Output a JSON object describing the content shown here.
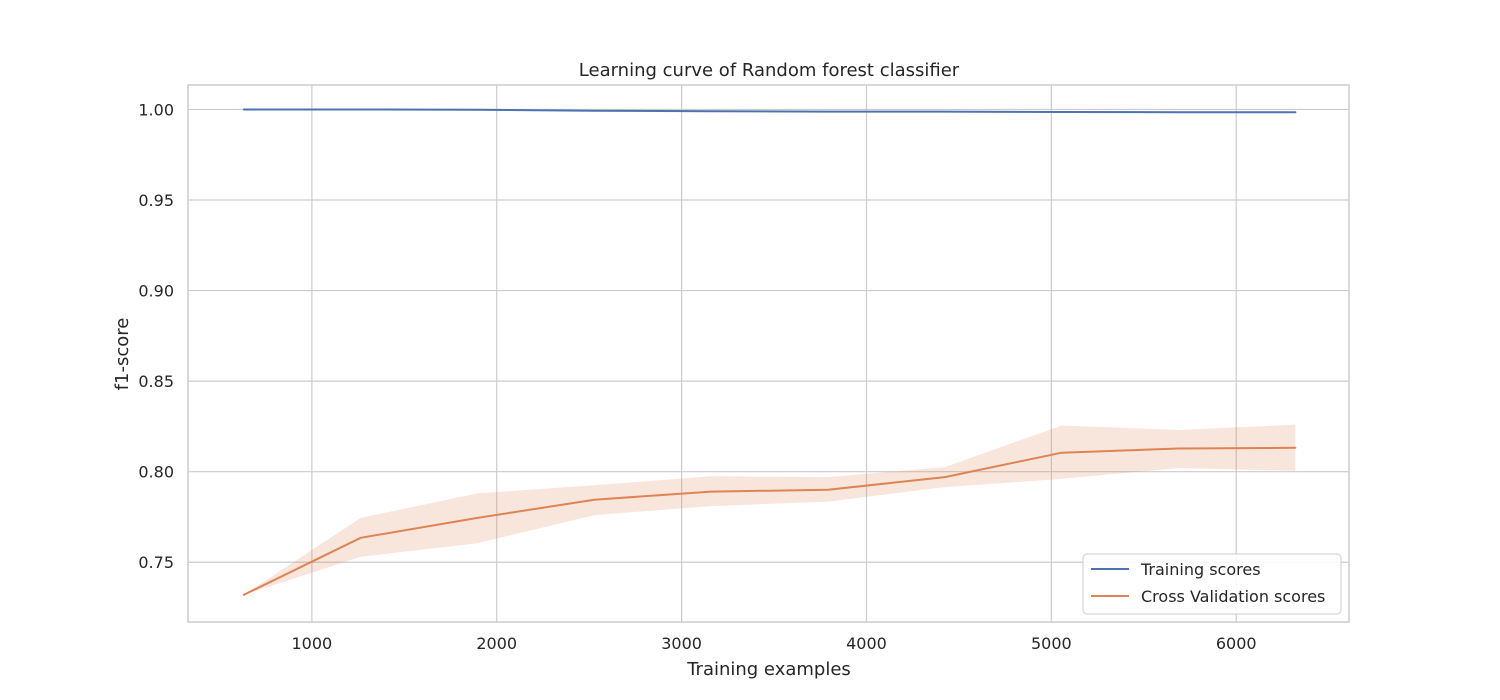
{
  "chart_data": {
    "type": "line",
    "title": "Learning curve of Random forest classifier",
    "xlabel": "Training examples",
    "ylabel": "f1-score",
    "xlim": [
      330,
      6610
    ],
    "ylim": [
      0.717,
      1.0135
    ],
    "xticks": [
      1000,
      2000,
      3000,
      4000,
      5000,
      6000
    ],
    "xtick_labels": [
      "1000",
      "2000",
      "3000",
      "4000",
      "5000",
      "6000"
    ],
    "yticks": [
      0.75,
      0.8,
      0.85,
      0.9,
      0.95,
      1.0
    ],
    "ytick_labels": [
      "0.75",
      "0.80",
      "0.85",
      "0.90",
      "0.95",
      "1.00"
    ],
    "grid": true,
    "legend_position": "lower-right",
    "x": [
      632,
      1264,
      1896,
      2528,
      3160,
      3792,
      4424,
      5056,
      5688,
      6320
    ],
    "series": [
      {
        "name": "Training scores",
        "color": "#4c72b0",
        "values": [
          1.0,
          1.0,
          0.9998,
          0.9993,
          0.999,
          0.9988,
          0.9988,
          0.9986,
          0.9985,
          0.9985
        ],
        "band_lower": [
          1.0,
          1.0,
          0.9998,
          0.9993,
          0.999,
          0.9988,
          0.9988,
          0.9986,
          0.9985,
          0.9985
        ],
        "band_upper": [
          1.0,
          1.0,
          0.9998,
          0.9993,
          0.999,
          0.9988,
          0.9988,
          0.9986,
          0.9985,
          0.9985
        ]
      },
      {
        "name": "Cross Validation scores",
        "color": "#dd8452",
        "values": [
          0.732,
          0.7635,
          0.7745,
          0.7845,
          0.789,
          0.79,
          0.797,
          0.8105,
          0.8128,
          0.8132
        ],
        "band_lower": [
          0.732,
          0.753,
          0.7605,
          0.776,
          0.781,
          0.7835,
          0.7915,
          0.796,
          0.802,
          0.8005
        ],
        "band_upper": [
          0.732,
          0.7745,
          0.788,
          0.7925,
          0.7975,
          0.797,
          0.8025,
          0.8255,
          0.823,
          0.826
        ]
      }
    ]
  }
}
